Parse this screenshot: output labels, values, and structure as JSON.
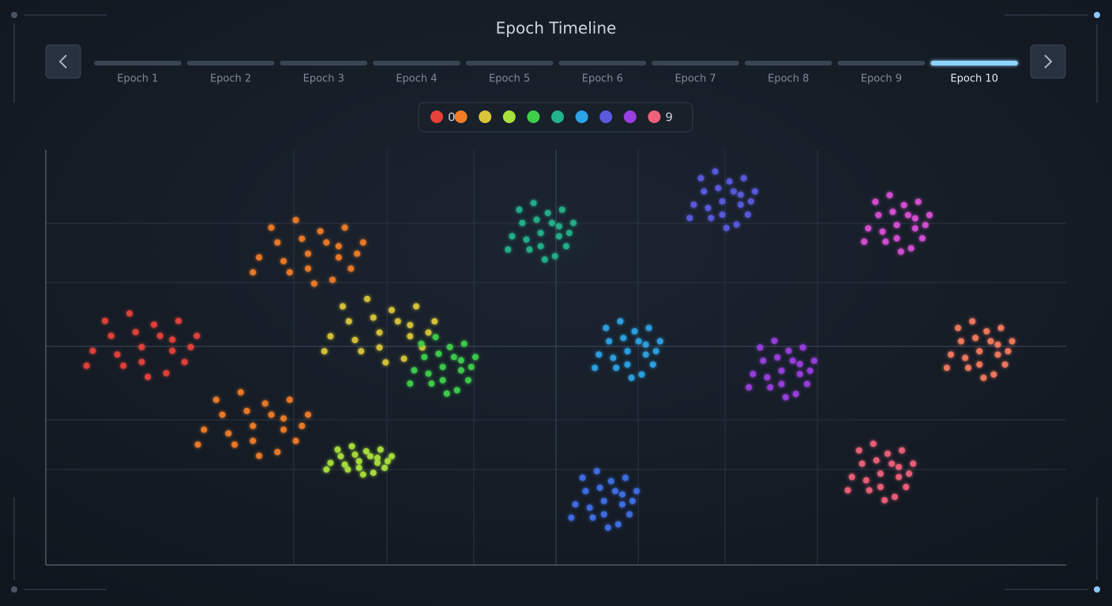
{
  "title": "Epoch Timeline",
  "timeline": {
    "epochs": [
      "Epoch 1",
      "Epoch 2",
      "Epoch 3",
      "Epoch 4",
      "Epoch 5",
      "Epoch 6",
      "Epoch 7",
      "Epoch 8",
      "Epoch 9",
      "Epoch 10"
    ],
    "active": 9
  },
  "legend": [
    {
      "color": "#e8413a",
      "label": "0"
    },
    {
      "color": "#f07c28"
    },
    {
      "color": "#d9c53a"
    },
    {
      "color": "#a8e03c"
    },
    {
      "color": "#3fcf4a"
    },
    {
      "color": "#22b38a"
    },
    {
      "color": "#2ba3e6"
    },
    {
      "color": "#5a5ae0"
    },
    {
      "color": "#9a3fe0"
    },
    {
      "color": "#f0607a",
      "label": "9"
    }
  ],
  "chart_data": {
    "type": "scatter",
    "xlim": [
      0,
      100
    ],
    "ylim": [
      0,
      100
    ],
    "grid": true,
    "series": [
      {
        "color": "#e8413a",
        "x": [
          9.4,
          12.4,
          6.4,
          10.6,
          7.6,
          13.6,
          4.6,
          10,
          14.8,
          5.8,
          11.8,
          8.2,
          13,
          4,
          11.2,
          7,
          14.2,
          9.4,
          8.8,
          12.4
        ],
        "values": [
          52.5,
          54.3,
          55.2,
          57.9,
          48,
          48.9,
          51.6,
          45.3,
          55.2,
          58.8,
          46.2,
          60.6,
          58.8,
          48,
          55.2,
          50.7,
          52.5,
          48.9,
          56.1,
          51.6
        ]
      },
      {
        "color": "#f07c28",
        "x": [
          25.7,
          28.7,
          22.7,
          26.9,
          23.9,
          29.9,
          20.9,
          26.3,
          31.1,
          22.1,
          28.1,
          24.5,
          29.3,
          20.3,
          27.5,
          23.3,
          30.5,
          25.7,
          25.1,
          28.7,
          20.3,
          23.3,
          17.3,
          21.5,
          18.5,
          24.5,
          15.5,
          20.9,
          25.7,
          16.7,
          22.7,
          19.1,
          23.9,
          14.9,
          22.1,
          17.9,
          25.1,
          20.3,
          19.7,
          23.3
        ],
        "values": [
          75,
          76.8,
          77.7,
          80.4,
          70.5,
          71.4,
          74.1,
          67.8,
          77.7,
          81.3,
          68.7,
          83.1,
          81.3,
          70.5,
          77.7,
          73.2,
          75,
          71.4,
          78.6,
          74.1,
          33.5,
          35.3,
          36.2,
          38.9,
          29,
          29.9,
          32.6,
          26.3,
          36.2,
          39.8,
          27.2,
          41.6,
          39.8,
          29,
          36.2,
          31.7,
          33.5,
          29.9,
          37.1,
          32.6
        ]
      },
      {
        "color": "#d9c53a",
        "x": [
          32.7,
          35.7,
          29.7,
          33.9,
          30.9,
          36.9,
          27.9,
          33.3,
          38.1,
          29.1,
          35.1,
          31.5,
          36.3,
          27.3,
          34.5,
          30.3,
          37.5,
          32.7,
          32.1,
          35.7
        ],
        "values": [
          56,
          57.8,
          58.7,
          61.4,
          51.5,
          52.4,
          55.1,
          48.8,
          58.7,
          62.3,
          49.7,
          64.1,
          62.3,
          51.5,
          58.7,
          54.2,
          56,
          52.4,
          59.6,
          55.1
        ]
      },
      {
        "color": "#a8e03c",
        "x": [
          30.7,
          32.5,
          28.9,
          31.4,
          29.6,
          33.2,
          27.9,
          31.1,
          33.9,
          28.6,
          32.1,
          30,
          32.8,
          27.5,
          31.8,
          29.3,
          33.5,
          30.7,
          30.3,
          32.5
        ],
        "values": [
          25,
          25.8,
          26.2,
          27.4,
          23,
          23.4,
          24.6,
          21.8,
          26.2,
          27.8,
          22.2,
          28.6,
          27.8,
          23,
          26.2,
          24.2,
          25,
          23.4,
          26.6,
          24.6
        ]
      },
      {
        "color": "#3fcf4a",
        "x": [
          38.9,
          40.7,
          37.1,
          39.6,
          37.8,
          41.4,
          36.1,
          39.3,
          42.1,
          36.8,
          40.3,
          38.2,
          41,
          35.7,
          40,
          37.5,
          41.7,
          38.9,
          38.5,
          40.7
        ],
        "values": [
          47.7,
          49.3,
          50.1,
          52.5,
          43.7,
          44.5,
          46.9,
          41.3,
          50.1,
          53.3,
          42.1,
          54.9,
          53.3,
          43.7,
          50.1,
          46.1,
          47.7,
          44.5,
          50.9,
          46.9
        ]
      },
      {
        "color": "#22b38a",
        "x": [
          48.5,
          50.3,
          46.7,
          49.2,
          47.4,
          51,
          45.7,
          48.9,
          51.7,
          46.4,
          49.9,
          47.8,
          50.6,
          45.3,
          49.6,
          47.1,
          51.3,
          48.5,
          48.1,
          50.3
        ],
        "values": [
          80,
          81.6,
          82.4,
          84.8,
          76,
          76.8,
          79.2,
          73.6,
          82.4,
          85.6,
          74.4,
          87.2,
          85.6,
          76,
          82.4,
          78.4,
          80,
          76.8,
          83.2,
          79.2
        ]
      },
      {
        "color": "#2ba3e6",
        "x": [
          57,
          58.8,
          55.2,
          57.7,
          55.9,
          59.5,
          54.2,
          57.4,
          60.2,
          54.9,
          58.4,
          56.3,
          59.1,
          53.8,
          58.1,
          55.6,
          59.8,
          57,
          56.6,
          58.8
        ],
        "values": [
          51.5,
          53.1,
          53.9,
          56.3,
          47.5,
          48.3,
          50.7,
          45.1,
          53.9,
          57.1,
          45.9,
          58.7,
          57.1,
          47.5,
          53.9,
          49.9,
          51.5,
          48.3,
          54.7,
          50.7
        ]
      },
      {
        "color": "#5a5ae0",
        "x": [
          66.3,
          68.1,
          64.5,
          67,
          65.2,
          68.8,
          63.5,
          66.7,
          69.5,
          64.2,
          67.7,
          65.6,
          68.4,
          63.1,
          67.4,
          64.9,
          69.1,
          66.3,
          65.9,
          68.1
        ],
        "values": [
          87.6,
          89.2,
          90,
          92.4,
          83.6,
          84.4,
          86.8,
          81.2,
          90,
          93.2,
          82,
          94.8,
          93.2,
          83.6,
          90,
          86,
          87.6,
          84.4,
          90.8,
          86.8
        ]
      },
      {
        "color": "#3f6fe8",
        "x": [
          54.7,
          56.5,
          52.9,
          55.4,
          53.6,
          57.2,
          51.9,
          55.1,
          57.9,
          52.6,
          56.1,
          54,
          56.8,
          51.5,
          55.8,
          53.3,
          57.5,
          54.7,
          54.3,
          56.5
        ],
        "values": [
          15.4,
          17,
          17.8,
          20.2,
          11.4,
          12.2,
          14.6,
          9,
          17.8,
          21,
          9.8,
          22.6,
          21,
          11.4,
          17.8,
          13.8,
          15.4,
          12.2,
          18.6,
          14.6
        ]
      },
      {
        "color": "#9a3fe0",
        "x": [
          72.1,
          73.9,
          70.3,
          72.8,
          71,
          74.6,
          69.3,
          72.5,
          75.3,
          70,
          73.5,
          71.4,
          74.2,
          68.9,
          73.2,
          70.7,
          74.9,
          72.1,
          71.7,
          73.9
        ],
        "values": [
          46.8,
          48.4,
          49.2,
          51.6,
          42.8,
          43.6,
          46,
          40.4,
          49.2,
          52.4,
          41.2,
          54,
          52.4,
          42.8,
          49.2,
          45.2,
          46.8,
          43.6,
          50,
          46
        ]
      },
      {
        "color": "#d94fd6",
        "x": [
          83.4,
          85.2,
          81.6,
          84.1,
          82.3,
          85.9,
          80.6,
          83.8,
          86.6,
          81.3,
          84.8,
          82.7,
          85.5,
          80.2,
          84.5,
          82,
          86.2,
          83.4,
          83,
          85.2
        ],
        "values": [
          81.9,
          83.5,
          84.3,
          86.7,
          77.9,
          78.7,
          81.1,
          75.5,
          84.3,
          87.5,
          76.3,
          89.1,
          87.5,
          77.9,
          84.3,
          80.3,
          81.9,
          78.7,
          85.1,
          81.1
        ]
      },
      {
        "color": "#f57a5e",
        "x": [
          91.5,
          93.3,
          89.7,
          92.2,
          90.4,
          94,
          88.7,
          91.9,
          94.7,
          89.4,
          92.9,
          90.8,
          93.6,
          88.3,
          92.6,
          90.1,
          94.3,
          91.5,
          91.1,
          93.3
        ],
        "values": [
          51.5,
          53.1,
          53.9,
          56.3,
          47.5,
          48.3,
          50.7,
          45.1,
          53.9,
          57.1,
          45.9,
          58.7,
          57.1,
          47.5,
          53.9,
          49.9,
          51.5,
          48.3,
          54.7,
          50.7
        ]
      },
      {
        "color": "#f0607a",
        "x": [
          81.8,
          83.6,
          80,
          82.5,
          80.7,
          84.3,
          79,
          82.2,
          85,
          79.7,
          83.2,
          81.1,
          83.9,
          78.6,
          82.9,
          80.4,
          84.6,
          81.8,
          81.4,
          83.6
        ],
        "values": [
          22,
          23.6,
          24.4,
          26.8,
          18,
          18.8,
          21.2,
          15.6,
          24.4,
          27.6,
          16.4,
          29.2,
          27.6,
          18,
          24.4,
          20.4,
          22,
          18.8,
          25.2,
          21.2
        ]
      }
    ]
  }
}
